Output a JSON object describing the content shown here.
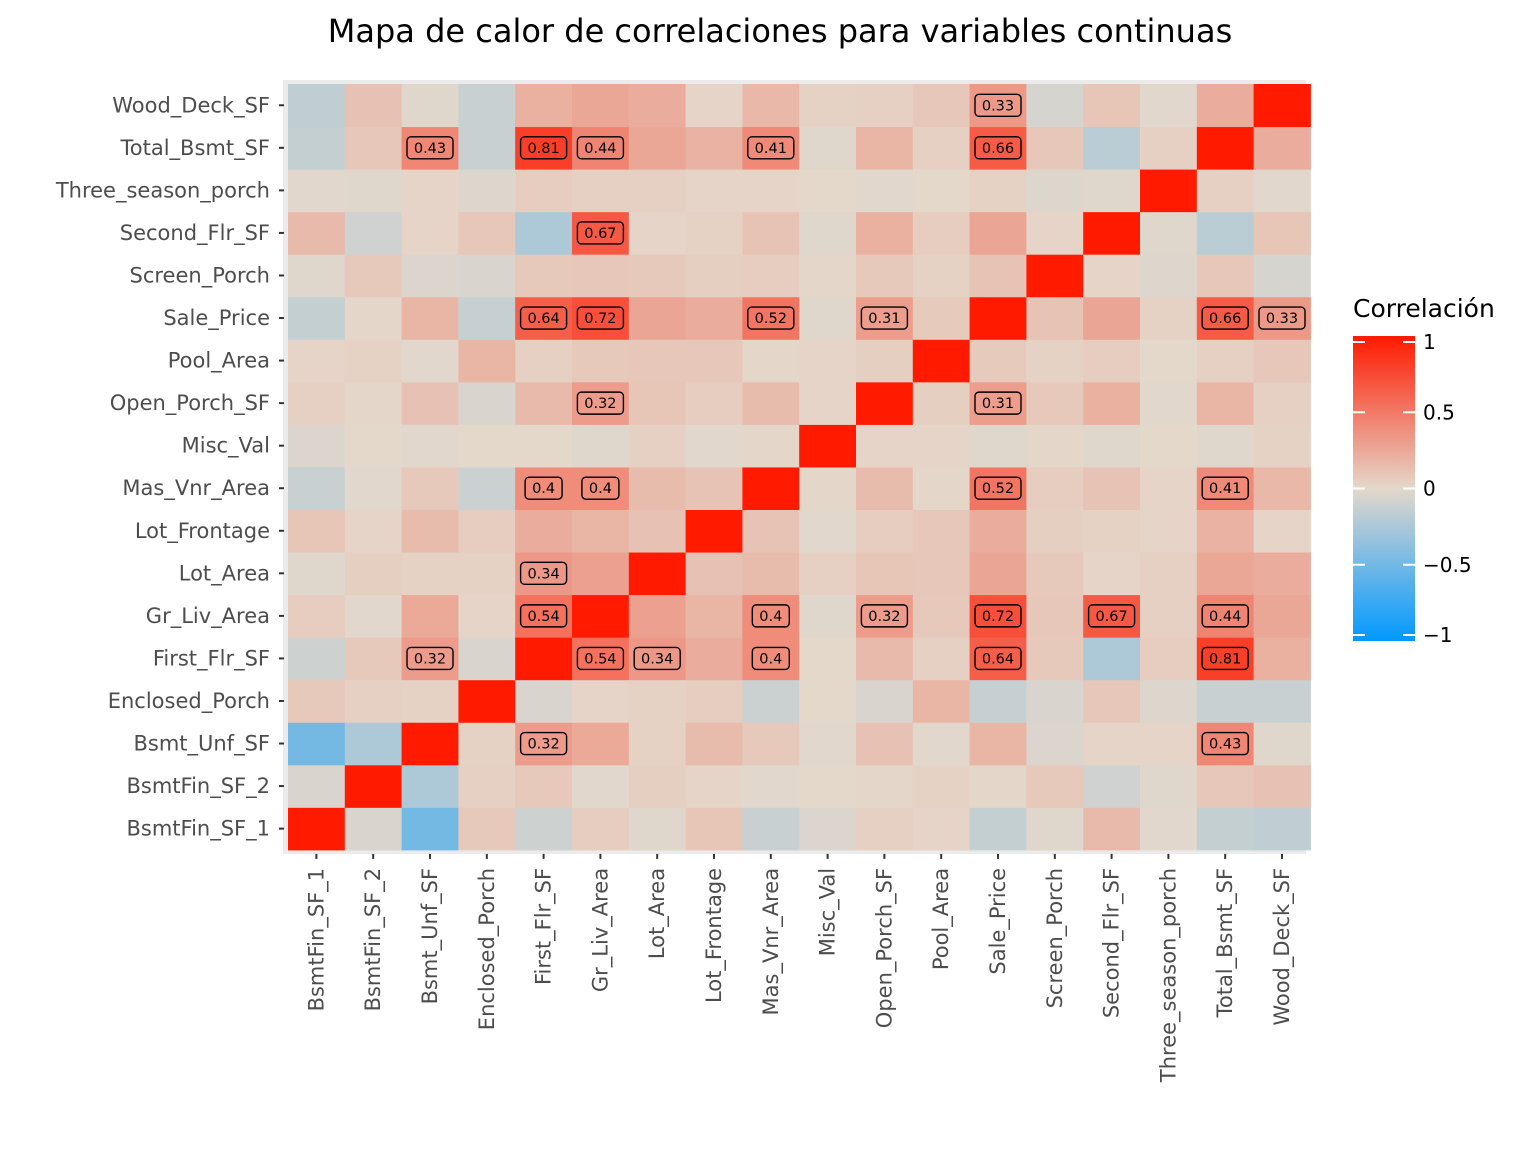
{
  "chart_data": {
    "type": "heatmap",
    "title": "Mapa de calor de correlaciones para variables continuas",
    "xlabel": "",
    "ylabel": "",
    "variables": [
      "BsmtFin_SF_1",
      "BsmtFin_SF_2",
      "Bsmt_Unf_SF",
      "Enclosed_Porch",
      "First_Flr_SF",
      "Gr_Liv_Area",
      "Lot_Area",
      "Lot_Frontage",
      "Mas_Vnr_Area",
      "Misc_Val",
      "Open_Porch_SF",
      "Pool_Area",
      "Sale_Price",
      "Screen_Porch",
      "Second_Flr_SF",
      "Three_season_porch",
      "Total_Bsmt_SF",
      "Wood_Deck_SF"
    ],
    "matrix": [
      [
        1.0,
        -0.05,
        -0.49,
        0.08,
        -0.1,
        0.06,
        -0.02,
        0.1,
        -0.12,
        -0.04,
        0.04,
        0.02,
        -0.14,
        -0.02,
        0.16,
        -0.01,
        -0.14,
        -0.16
      ],
      [
        -0.05,
        1.0,
        -0.24,
        0.04,
        0.08,
        -0.01,
        0.05,
        0.02,
        -0.01,
        0.0,
        0.01,
        0.03,
        0.01,
        0.08,
        -0.09,
        -0.02,
        0.09,
        0.12
      ],
      [
        -0.49,
        -0.24,
        1.0,
        0.03,
        0.32,
        0.25,
        0.03,
        0.15,
        0.08,
        -0.01,
        0.12,
        -0.01,
        0.18,
        -0.04,
        0.02,
        0.02,
        0.43,
        -0.02
      ],
      [
        0.08,
        0.04,
        0.03,
        1.0,
        -0.05,
        0.02,
        0.03,
        0.06,
        -0.11,
        0.0,
        -0.05,
        0.18,
        -0.13,
        -0.05,
        0.09,
        -0.03,
        -0.12,
        -0.12
      ],
      [
        -0.1,
        0.08,
        0.32,
        -0.05,
        1.0,
        0.54,
        0.34,
        0.23,
        0.4,
        0.0,
        0.16,
        0.04,
        0.64,
        0.08,
        -0.24,
        0.06,
        0.81,
        0.21
      ],
      [
        0.06,
        -0.01,
        0.25,
        0.02,
        0.54,
        1.0,
        0.29,
        0.18,
        0.4,
        -0.02,
        0.32,
        0.08,
        0.72,
        0.09,
        0.67,
        0.04,
        0.44,
        0.26
      ],
      [
        -0.02,
        0.05,
        0.03,
        0.03,
        0.34,
        0.29,
        1.0,
        0.12,
        0.15,
        0.04,
        0.1,
        0.09,
        0.27,
        0.08,
        0.02,
        0.04,
        0.26,
        0.23
      ],
      [
        0.1,
        0.02,
        0.15,
        0.06,
        0.23,
        0.18,
        0.12,
        1.0,
        0.11,
        -0.01,
        0.06,
        0.09,
        0.23,
        0.05,
        0.03,
        0.02,
        0.2,
        0.02
      ],
      [
        -0.12,
        -0.01,
        0.08,
        -0.11,
        0.4,
        0.4,
        0.15,
        0.11,
        1.0,
        0.01,
        0.15,
        0.01,
        0.52,
        0.06,
        0.11,
        0.02,
        0.41,
        0.17
      ],
      [
        -0.04,
        0.0,
        -0.01,
        0.0,
        0.0,
        -0.02,
        0.04,
        -0.01,
        0.01,
        1.0,
        0.02,
        0.02,
        -0.02,
        0.01,
        -0.02,
        0.0,
        -0.02,
        0.03
      ],
      [
        0.04,
        0.01,
        0.12,
        -0.05,
        0.16,
        0.32,
        0.1,
        0.06,
        0.15,
        0.02,
        1.0,
        0.05,
        0.31,
        0.08,
        0.21,
        -0.01,
        0.18,
        0.04
      ],
      [
        0.02,
        0.03,
        -0.01,
        0.18,
        0.04,
        0.08,
        0.09,
        0.09,
        0.01,
        0.02,
        0.05,
        1.0,
        0.07,
        0.03,
        0.06,
        0.0,
        0.04,
        0.09
      ],
      [
        -0.14,
        0.01,
        0.18,
        -0.13,
        0.64,
        0.72,
        0.27,
        0.23,
        0.52,
        -0.02,
        0.31,
        0.07,
        1.0,
        0.11,
        0.27,
        0.03,
        0.66,
        0.33
      ],
      [
        -0.02,
        0.08,
        -0.04,
        -0.05,
        0.08,
        0.09,
        0.08,
        0.05,
        0.06,
        0.01,
        0.08,
        0.03,
        0.11,
        1.0,
        0.02,
        -0.03,
        0.09,
        -0.06
      ],
      [
        0.16,
        -0.09,
        0.02,
        0.09,
        -0.24,
        0.67,
        0.02,
        0.03,
        0.11,
        -0.02,
        0.21,
        0.06,
        0.27,
        0.02,
        1.0,
        -0.02,
        -0.18,
        0.1
      ],
      [
        -0.01,
        -0.02,
        0.02,
        -0.03,
        0.06,
        0.04,
        0.04,
        0.02,
        0.02,
        0.0,
        -0.01,
        0.0,
        0.03,
        -0.03,
        -0.02,
        1.0,
        0.04,
        -0.01
      ],
      [
        -0.14,
        0.09,
        0.43,
        -0.12,
        0.81,
        0.44,
        0.26,
        0.2,
        0.41,
        -0.02,
        0.18,
        0.04,
        0.66,
        0.09,
        -0.18,
        0.04,
        1.0,
        0.23
      ],
      [
        -0.16,
        0.12,
        -0.02,
        -0.12,
        0.21,
        0.26,
        0.23,
        0.02,
        0.17,
        0.03,
        0.04,
        0.09,
        0.33,
        -0.06,
        0.1,
        -0.01,
        0.23,
        1.0
      ]
    ],
    "label_threshold": 0.3,
    "legend": {
      "title": "Correlación",
      "position": "right",
      "range": [
        -1,
        1
      ],
      "ticks": [
        {
          "value": 1,
          "label": "1"
        },
        {
          "value": 0.5,
          "label": "0.5"
        },
        {
          "value": 0,
          "label": "0"
        },
        {
          "value": -0.5,
          "label": "−0.5"
        },
        {
          "value": -1,
          "label": "−1"
        }
      ]
    },
    "colors": {
      "low": "#0099ff",
      "mid": "#e4d8cb",
      "high": "#ff1a00",
      "panel_background": "#ebebeb",
      "tick_text": "#4d4d4d"
    },
    "grid": true
  }
}
